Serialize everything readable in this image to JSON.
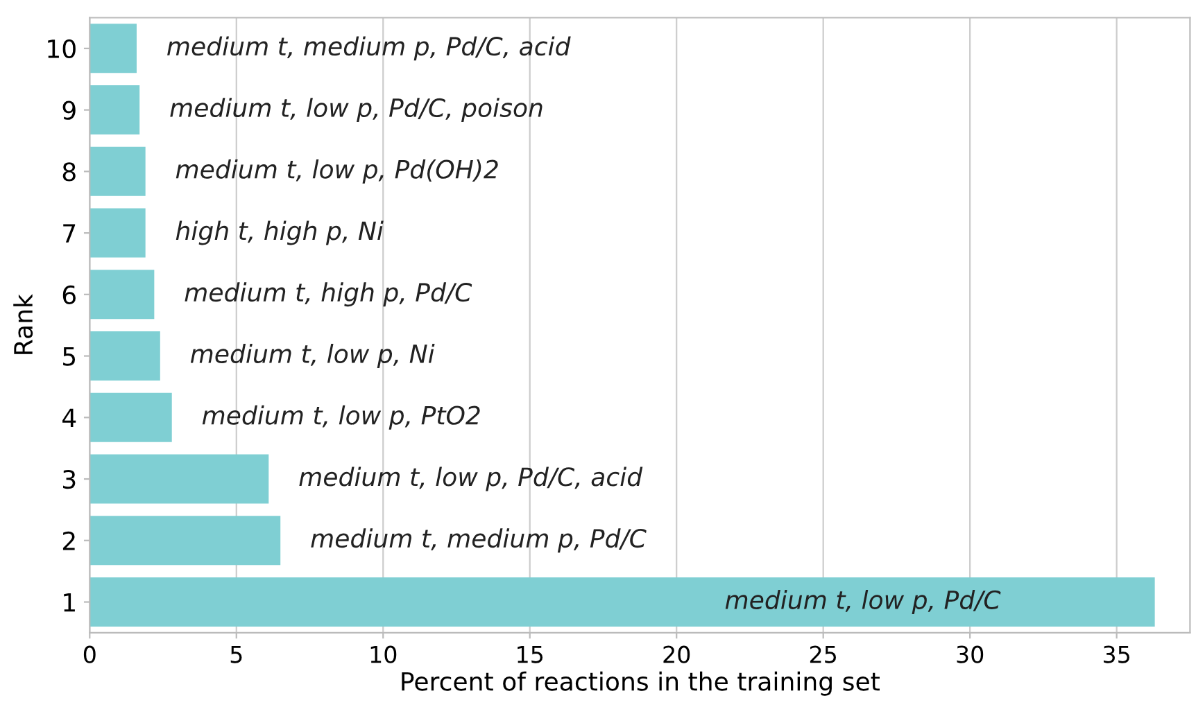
{
  "chart_data": {
    "type": "bar",
    "orientation": "horizontal",
    "xlabel": "Percent of reactions in the training set",
    "ylabel": "Rank",
    "categories": [
      "10",
      "9",
      "8",
      "7",
      "6",
      "5",
      "4",
      "3",
      "2",
      "1"
    ],
    "values": [
      1.6,
      1.7,
      1.9,
      1.9,
      2.2,
      2.4,
      2.8,
      6.1,
      6.5,
      36.3
    ],
    "color": "#7fcfd3",
    "xlim": [
      0,
      37.5
    ],
    "xticks": [
      0,
      5,
      10,
      15,
      20,
      25,
      30,
      35
    ],
    "grid": "x",
    "value_labels": [
      "medium t, medium p, Pd/C, acid",
      "medium t, low p, Pd/C, poison",
      "medium t, low p, Pd(OH)2",
      "high t, high p, Ni",
      "medium t, high p, Pd/C",
      "medium t, low p, Ni",
      "medium t, low p, PtO2",
      "medium t, low p, Pd/C, acid",
      "medium t, medium p, Pd/C",
      "medium t, low p, Pd/C"
    ]
  }
}
